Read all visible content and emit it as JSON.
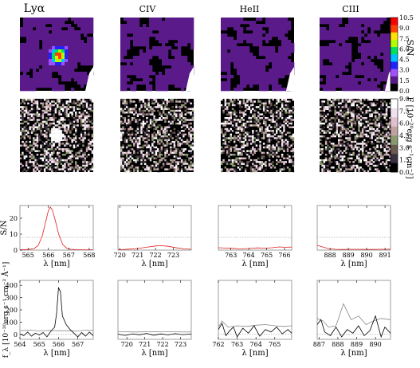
{
  "columns": [
    {
      "label": "Lyα"
    },
    {
      "label": "CIV"
    },
    {
      "label": "HeII"
    },
    {
      "label": "CIII"
    }
  ],
  "colorbars": {
    "sn": {
      "label": "S/N",
      "ticks": [
        "0.0",
        "1.5",
        "3.0",
        "4.5",
        "6.0",
        "7.5",
        "9.0",
        "10.5"
      ],
      "colors": [
        "#000000",
        "#5a1a8a",
        "#a050ff",
        "#2222ff",
        "#00c0ff",
        "#00e060",
        "#b0ff00",
        "#ffe000",
        "#ff4000",
        "#ff0000"
      ]
    },
    "flux": {
      "label": "F [10⁻²⁰erg s⁻¹cm⁻²]",
      "ticks": [
        "0.0",
        "1.5",
        "3.0",
        "4.5",
        "6.0",
        "7.5",
        "9.0"
      ],
      "colors": [
        "#000000",
        "#3a3040",
        "#6a5a50",
        "#8a9a70",
        "#c0a0a0",
        "#e0c0d0",
        "#f0e0f0",
        "#ffffff"
      ]
    }
  },
  "chart_data": [
    {
      "type": "line",
      "panel": "Lyα S/N spectrum",
      "ylabel": "S/N",
      "xlabel": "λ [nm]",
      "xlim": [
        564.6,
        568.2
      ],
      "ylim": [
        0,
        28
      ],
      "xticks": [
        565,
        566,
        567,
        568
      ],
      "yticks": [
        0,
        10,
        20
      ],
      "threshold": 8,
      "series": [
        {
          "color": "#e02020",
          "x": [
            564.6,
            565.0,
            565.3,
            565.5,
            565.7,
            565.85,
            566.0,
            566.1,
            566.2,
            566.35,
            566.5,
            566.7,
            566.9,
            567.1,
            567.4,
            567.8,
            568.2
          ],
          "y": [
            0.2,
            0.4,
            1.0,
            3,
            9,
            17,
            25,
            27,
            25,
            18,
            10,
            3.5,
            1.2,
            0.5,
            0.3,
            0.2,
            0.2
          ]
        }
      ]
    },
    {
      "type": "line",
      "panel": "CIV S/N spectrum",
      "xlabel": "λ [nm]",
      "xlim": [
        719.9,
        724.0
      ],
      "ylim": [
        0,
        28
      ],
      "xticks": [
        720,
        721,
        722,
        723
      ],
      "threshold": 8,
      "series": [
        {
          "color": "#e02020",
          "x": [
            719.9,
            720.5,
            721.0,
            721.5,
            722.0,
            722.3,
            722.7,
            723.2,
            723.6,
            724.0
          ],
          "y": [
            0.2,
            0.6,
            1.0,
            1.8,
            2.6,
            2.8,
            2.4,
            1.4,
            0.8,
            0.5
          ]
        }
      ]
    },
    {
      "type": "line",
      "panel": "HeII S/N spectrum",
      "xlabel": "λ [nm]",
      "xlim": [
        762.3,
        766.4
      ],
      "ylim": [
        0,
        28
      ],
      "xticks": [
        763,
        764,
        765,
        766
      ],
      "threshold": 8,
      "series": [
        {
          "color": "#e02020",
          "x": [
            762.3,
            762.7,
            763.1,
            763.5,
            764.0,
            764.5,
            764.9,
            765.3,
            765.7,
            766.0,
            766.4
          ],
          "y": [
            1.5,
            1.3,
            1.1,
            0.8,
            1.0,
            1.4,
            1.2,
            1.5,
            2.0,
            1.8,
            1.9
          ]
        }
      ]
    },
    {
      "type": "line",
      "panel": "CIII S/N spectrum",
      "xlabel": "λ [nm]",
      "xlim": [
        887.3,
        891.3
      ],
      "ylim": [
        0,
        28
      ],
      "xticks": [
        888,
        889,
        890,
        891
      ],
      "threshold": 8,
      "series": [
        {
          "color": "#e02020",
          "x": [
            887.3,
            887.6,
            887.9,
            888.3,
            888.7,
            889.1,
            889.6,
            890.1,
            890.6,
            891.0,
            891.3
          ],
          "y": [
            3.0,
            2.0,
            1.0,
            0.5,
            0.4,
            0.5,
            0.5,
            0.4,
            0.5,
            0.5,
            0.6
          ]
        }
      ]
    },
    {
      "type": "line",
      "panel": "Lyα flux spectrum",
      "ylabel": "f_λ [10⁻²⁰erg s⁻¹ cm⁻² Å⁻¹]",
      "xlabel": "λ [nm]",
      "xlim": [
        564.0,
        567.8
      ],
      "ylim": [
        -40,
        440
      ],
      "xticks": [
        564,
        565,
        566,
        567
      ],
      "yticks": [
        0,
        100,
        200,
        300,
        400
      ],
      "series": [
        {
          "name": "flux",
          "color": "#000000",
          "x": [
            564.0,
            564.2,
            564.4,
            564.6,
            564.8,
            565.0,
            565.2,
            565.4,
            565.6,
            565.8,
            565.9,
            566.0,
            566.1,
            566.2,
            566.4,
            566.6,
            566.8,
            567.0,
            567.2,
            567.4,
            567.6,
            567.8
          ],
          "y": [
            5,
            -10,
            20,
            -15,
            10,
            -5,
            15,
            -20,
            25,
            60,
            170,
            380,
            350,
            150,
            80,
            40,
            10,
            -20,
            15,
            -15,
            20,
            -10
          ]
        },
        {
          "name": "noise",
          "color": "#888888",
          "x": [
            564.0,
            564.5,
            565.0,
            565.5,
            566.0,
            566.5,
            567.0,
            567.5,
            567.8
          ],
          "y": [
            30,
            35,
            28,
            32,
            30,
            30,
            28,
            35,
            30
          ]
        }
      ]
    },
    {
      "type": "line",
      "panel": "CIV flux spectrum",
      "xlabel": "λ [nm]",
      "xlim": [
        719.5,
        723.6
      ],
      "ylim": [
        -40,
        440
      ],
      "xticks": [
        720,
        721,
        722,
        723
      ],
      "series": [
        {
          "name": "flux",
          "color": "#000000",
          "x": [
            719.5,
            719.9,
            720.3,
            720.7,
            721.1,
            721.5,
            721.9,
            722.3,
            722.7,
            723.1,
            723.6
          ],
          "y": [
            2,
            -8,
            5,
            -3,
            8,
            -6,
            4,
            -4,
            6,
            -2,
            3
          ]
        },
        {
          "name": "noise",
          "color": "#888888",
          "x": [
            719.5,
            720.5,
            721.5,
            722.5,
            723.6
          ],
          "y": [
            22,
            20,
            22,
            21,
            20
          ]
        }
      ]
    },
    {
      "type": "line",
      "panel": "HeII flux spectrum",
      "xlabel": "λ [nm]",
      "xlim": [
        762.0,
        765.9
      ],
      "ylim": [
        -40,
        440
      ],
      "xticks": [
        762,
        763,
        764,
        765
      ],
      "series": [
        {
          "name": "flux",
          "color": "#000000",
          "x": [
            762.0,
            762.2,
            762.4,
            762.6,
            762.8,
            763.0,
            763.3,
            763.6,
            763.9,
            764.2,
            764.5,
            764.8,
            765.1,
            765.4,
            765.7,
            765.9
          ],
          "y": [
            40,
            90,
            -10,
            30,
            60,
            -20,
            50,
            10,
            70,
            -15,
            40,
            20,
            60,
            5,
            40,
            10
          ]
        },
        {
          "name": "noise",
          "color": "#888888",
          "x": [
            762.0,
            762.2,
            762.5,
            763.0,
            763.5,
            764.0,
            764.5,
            765.0,
            765.5,
            765.9
          ],
          "y": [
            60,
            110,
            60,
            70,
            65,
            75,
            80,
            70,
            65,
            70
          ]
        }
      ]
    },
    {
      "type": "line",
      "panel": "CIII flux spectrum",
      "xlabel": "λ [nm]",
      "xlim": [
        886.9,
        890.8
      ],
      "ylim": [
        -40,
        440
      ],
      "xticks": [
        887,
        888,
        889,
        890
      ],
      "series": [
        {
          "name": "flux",
          "color": "#000000",
          "x": [
            886.9,
            887.1,
            887.3,
            887.6,
            887.9,
            888.2,
            888.5,
            888.8,
            889.1,
            889.4,
            889.7,
            890.0,
            890.3,
            890.5,
            890.8
          ],
          "y": [
            80,
            120,
            20,
            -10,
            60,
            -20,
            40,
            10,
            70,
            -10,
            30,
            150,
            -20,
            60,
            10
          ]
        },
        {
          "name": "noise",
          "color": "#888888",
          "x": [
            886.9,
            887.2,
            887.5,
            887.9,
            888.3,
            888.7,
            889.1,
            889.5,
            889.9,
            890.3,
            890.8
          ],
          "y": [
            130,
            110,
            60,
            70,
            250,
            120,
            150,
            80,
            110,
            130,
            120
          ]
        }
      ]
    }
  ]
}
